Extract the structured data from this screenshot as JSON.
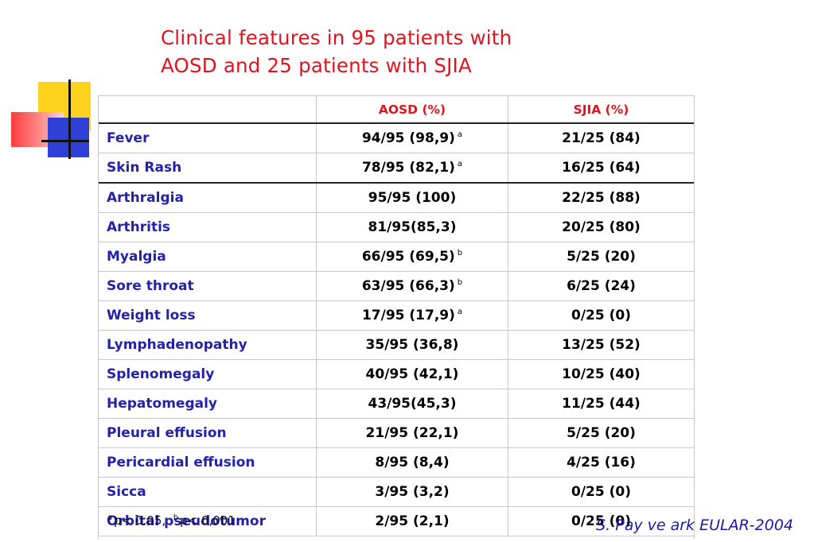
{
  "title": {
    "line1": "Clinical features in 95 patients with",
    "line2": "AOSD and 25 patients with SJIA"
  },
  "table": {
    "headers": [
      "",
      "AOSD (%)",
      "SJIA (%)"
    ],
    "rows": [
      {
        "feature": "Fever",
        "aosd": "94/95 (98,9)",
        "aosd_sup": "a",
        "sjia": "21/25 (84)"
      },
      {
        "feature": "Skin Rash",
        "aosd": "78/95 (82,1)",
        "aosd_sup": "a",
        "sjia": "16/25 (64)"
      },
      {
        "feature": "Arthralgia",
        "aosd": "95/95 (100)",
        "aosd_sup": "",
        "sjia": "22/25 (88)"
      },
      {
        "feature": "Arthritis",
        "aosd": "81/95(85,3)",
        "aosd_sup": "",
        "sjia": "20/25 (80)"
      },
      {
        "feature": "Myalgia",
        "aosd": "66/95 (69,5)",
        "aosd_sup": "b",
        "sjia": "5/25 (20)"
      },
      {
        "feature": "Sore throat",
        "aosd": "63/95 (66,3)",
        "aosd_sup": "b",
        "sjia": "6/25 (24)"
      },
      {
        "feature": "Weight loss",
        "aosd": "17/95 (17,9)",
        "aosd_sup": "a",
        "sjia": "0/25 (0)"
      },
      {
        "feature": "Lymphadenopathy",
        "aosd": "35/95 (36,8)",
        "aosd_sup": "",
        "sjia": "13/25 (52)"
      },
      {
        "feature": "Splenomegaly",
        "aosd": "40/95 (42,1)",
        "aosd_sup": "",
        "sjia": "10/25 (40)"
      },
      {
        "feature": "Hepatomegaly",
        "aosd": "43/95(45,3)",
        "aosd_sup": "",
        "sjia": "11/25 (44)"
      },
      {
        "feature": "Pleural effusion",
        "aosd": "21/95 (22,1)",
        "aosd_sup": "",
        "sjia": "5/25 (20)"
      },
      {
        "feature": "Pericardial effusion",
        "aosd": "8/95 (8,4)",
        "aosd_sup": "",
        "sjia": "4/25 (16)"
      },
      {
        "feature": "Sicca",
        "aosd": "3/95 (3,2)",
        "aosd_sup": "",
        "sjia": "0/25 (0)"
      },
      {
        "feature": "Orbital pseudotumor",
        "aosd": "2/95 (2,1)",
        "aosd_sup": "",
        "sjia": "0/25 (0)"
      }
    ]
  },
  "footnote": {
    "a_mark": "a",
    "a_text": "p< 0.05,",
    "b_mark": "b",
    "b_text": "p< 0,001"
  },
  "citation": "S. Pay ve ark EULAR-2004",
  "colors": {
    "title": "#e0141e",
    "feature_text": "#2422a8",
    "header_text": "#e0141e",
    "citation": "#1a1aa6"
  }
}
